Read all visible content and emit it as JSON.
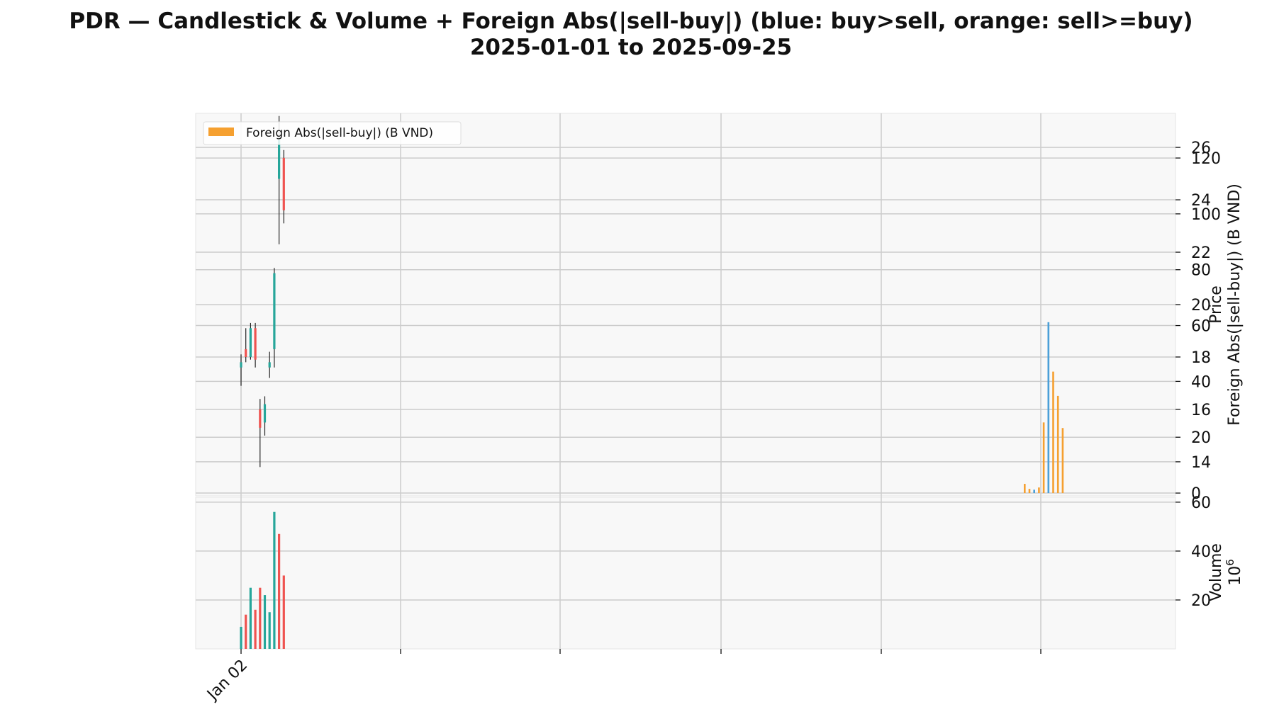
{
  "title": {
    "line1": "PDR — Candlestick & Volume + Foreign Abs(|sell-buy|) (blue: buy>sell, orange: sell>=buy)",
    "line2": "2025-01-01 to 2025-09-25"
  },
  "colors": {
    "up": "#26a69a",
    "down": "#ef5350",
    "wick": "#222222",
    "foreign_buy": "#4a9fd8",
    "foreign_sell": "#f5a030",
    "panel_bg": "#f8f8f8",
    "grid": "#cccccc"
  },
  "chart_data": [
    {
      "type": "candlestick",
      "panel": "price",
      "ylabel": "Price",
      "ylim": [
        12.7,
        27.3
      ],
      "yticks": [
        14,
        16,
        18,
        20,
        22,
        24,
        26
      ],
      "xticks": [
        "Jan 02",
        "",
        "",
        "",
        "",
        ""
      ],
      "x_slots": 184,
      "candles": [
        {
          "x": 0,
          "o": 17.6,
          "h": 18.1,
          "l": 16.9,
          "c": 17.8
        },
        {
          "x": 1,
          "o": 18.3,
          "h": 19.1,
          "l": 17.8,
          "c": 18.0
        },
        {
          "x": 2,
          "o": 18.0,
          "h": 19.3,
          "l": 17.9,
          "c": 19.1
        },
        {
          "x": 3,
          "o": 19.1,
          "h": 19.3,
          "l": 17.6,
          "c": 17.9
        },
        {
          "x": 4,
          "o": 16.0,
          "h": 16.4,
          "l": 13.8,
          "c": 15.3
        },
        {
          "x": 5,
          "o": 15.5,
          "h": 16.5,
          "l": 15.0,
          "c": 16.2
        },
        {
          "x": 6,
          "o": 17.6,
          "h": 18.2,
          "l": 17.2,
          "c": 17.8
        },
        {
          "x": 7,
          "o": 18.3,
          "h": 21.4,
          "l": 17.6,
          "c": 21.2
        },
        {
          "x": 8,
          "o": 24.8,
          "h": 27.2,
          "l": 22.3,
          "c": 26.3
        },
        {
          "x": 9,
          "o": 25.6,
          "h": 25.9,
          "l": 23.1,
          "c": 23.6
        }
      ]
    },
    {
      "type": "bar",
      "panel": "foreign",
      "ylabel": "Foreign Abs(|sell-buy|) (B VND)",
      "ylim": [
        -1,
        136
      ],
      "yticks": [
        0,
        20,
        40,
        60,
        80,
        100,
        120
      ],
      "legend": [
        "Foreign Abs(|sell-buy|) (B VND)"
      ],
      "legend_position": "top-left",
      "bars": [
        {
          "x": 165,
          "value": 3.3,
          "side": "sell"
        },
        {
          "x": 166,
          "value": 1.5,
          "side": "sell"
        },
        {
          "x": 167,
          "value": 1.2,
          "side": "buy"
        },
        {
          "x": 168,
          "value": 2.0,
          "side": "sell"
        },
        {
          "x": 169,
          "value": 25.3,
          "side": "sell"
        },
        {
          "x": 170,
          "value": 61.2,
          "side": "buy"
        },
        {
          "x": 171,
          "value": 43.5,
          "side": "sell"
        },
        {
          "x": 172,
          "value": 34.8,
          "side": "sell"
        },
        {
          "x": 173,
          "value": 23.3,
          "side": "sell"
        }
      ]
    },
    {
      "type": "bar",
      "panel": "volume",
      "ylabel": "Volume",
      "scale_label": "10^6",
      "ylim": [
        0,
        62
      ],
      "yticks": [
        20,
        40,
        60
      ],
      "bars": [
        {
          "x": 0,
          "value": 9,
          "dir": "up"
        },
        {
          "x": 1,
          "value": 14,
          "dir": "down"
        },
        {
          "x": 2,
          "value": 25,
          "dir": "up"
        },
        {
          "x": 3,
          "value": 16,
          "dir": "down"
        },
        {
          "x": 4,
          "value": 25,
          "dir": "down"
        },
        {
          "x": 5,
          "value": 22,
          "dir": "up"
        },
        {
          "x": 6,
          "value": 15,
          "dir": "up"
        },
        {
          "x": 7,
          "value": 56,
          "dir": "up"
        },
        {
          "x": 8,
          "value": 47,
          "dir": "down"
        },
        {
          "x": 9,
          "value": 30,
          "dir": "down"
        }
      ]
    }
  ]
}
